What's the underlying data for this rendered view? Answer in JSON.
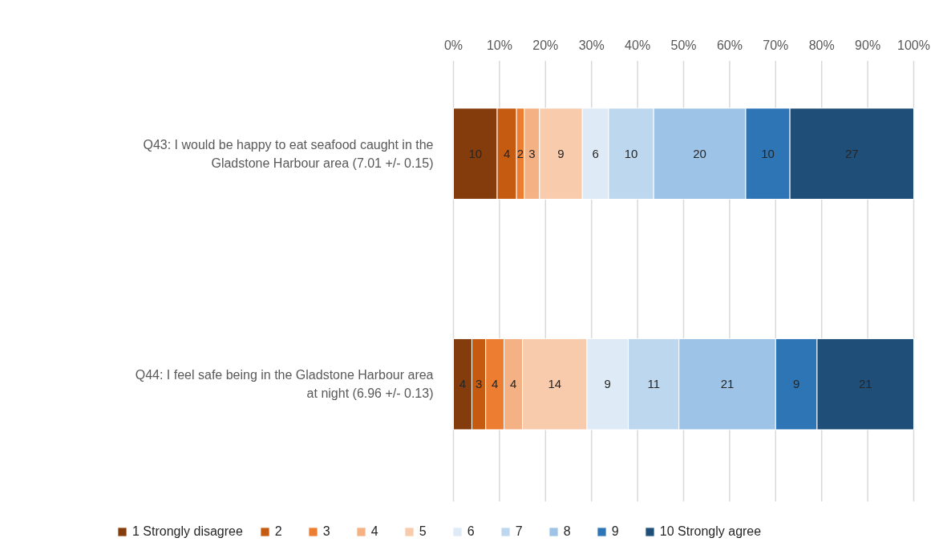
{
  "chart_data": {
    "type": "bar",
    "orientation": "horizontal",
    "stacked": true,
    "categories": [
      "Q43: I would be happy to eat seafood caught in the Gladstone Harbour area (7.01 +/- 0.15)",
      "Q44: I feel safe being in the Gladstone Harbour area at night (6.96 +/- 0.13)"
    ],
    "series": [
      {
        "name": "1 Strongly disagree",
        "color": "#843c0c",
        "values": [
          9.5,
          4
        ],
        "value_labels": [
          "10",
          "4"
        ]
      },
      {
        "name": "2",
        "color": "#c55a11",
        "values": [
          4.2,
          3
        ],
        "value_labels": [
          "4",
          "3"
        ]
      },
      {
        "name": "3",
        "color": "#ed7d31",
        "values": [
          1.7,
          4
        ],
        "value_labels": [
          "2",
          "4"
        ]
      },
      {
        "name": "4",
        "color": "#f4b183",
        "values": [
          3.3,
          4
        ],
        "value_labels": [
          "3",
          "4"
        ]
      },
      {
        "name": "5",
        "color": "#f8cbad",
        "values": [
          9.3,
          14
        ],
        "value_labels": [
          "9",
          "14"
        ]
      },
      {
        "name": "6",
        "color": "#deebf7",
        "values": [
          5.7,
          9
        ],
        "value_labels": [
          "6",
          "9"
        ]
      },
      {
        "name": "7",
        "color": "#bdd7ee",
        "values": [
          9.8,
          11
        ],
        "value_labels": [
          "10",
          "11"
        ]
      },
      {
        "name": "8",
        "color": "#9dc3e6",
        "values": [
          20.0,
          21
        ],
        "value_labels": [
          "20",
          "21"
        ]
      },
      {
        "name": "9",
        "color": "#2e75b6",
        "values": [
          9.6,
          9
        ],
        "value_labels": [
          "10",
          "9"
        ]
      },
      {
        "name": "10 Strongly agree",
        "color": "#1f4e79",
        "values": [
          26.9,
          21
        ],
        "value_labels": [
          "27",
          "21"
        ]
      }
    ],
    "xlim": [
      0,
      100
    ],
    "xticks": [
      {
        "value": 0,
        "label": "0%"
      },
      {
        "value": 10,
        "label": "10%"
      },
      {
        "value": 20,
        "label": "20%"
      },
      {
        "value": 30,
        "label": "30%"
      },
      {
        "value": 40,
        "label": "40%"
      },
      {
        "value": 50,
        "label": "50%"
      },
      {
        "value": 60,
        "label": "60%"
      },
      {
        "value": 70,
        "label": "70%"
      },
      {
        "value": 80,
        "label": "80%"
      },
      {
        "value": 90,
        "label": "90%"
      },
      {
        "value": 100,
        "label": "100%"
      }
    ],
    "grid": "x",
    "legend": "bottom"
  }
}
